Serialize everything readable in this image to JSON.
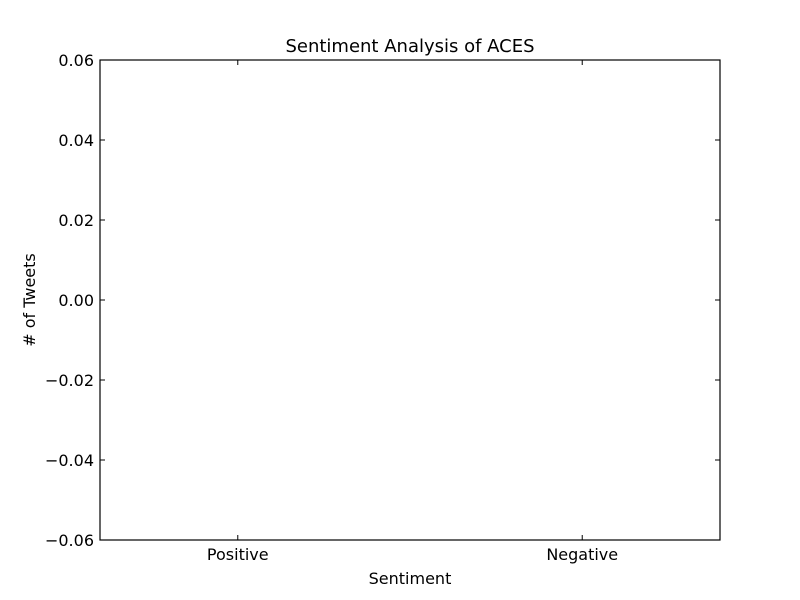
{
  "chart_data": {
    "type": "bar",
    "title": "Sentiment Analysis of ACES",
    "xlabel": "Sentiment",
    "ylabel": "# of Tweets",
    "categories": [
      "Positive",
      "Negative"
    ],
    "values": [
      0,
      0
    ],
    "ylim": [
      -0.06,
      0.06
    ],
    "yticks": [
      0.06,
      0.04,
      0.02,
      0.0,
      -0.02,
      -0.04,
      -0.06
    ],
    "ytick_labels": [
      "0.06",
      "0.04",
      "0.02",
      "0.00",
      "−0.02",
      "−0.04",
      "−0.06"
    ],
    "grid": false,
    "legend": "none",
    "bar_edge_color": "#808080"
  }
}
